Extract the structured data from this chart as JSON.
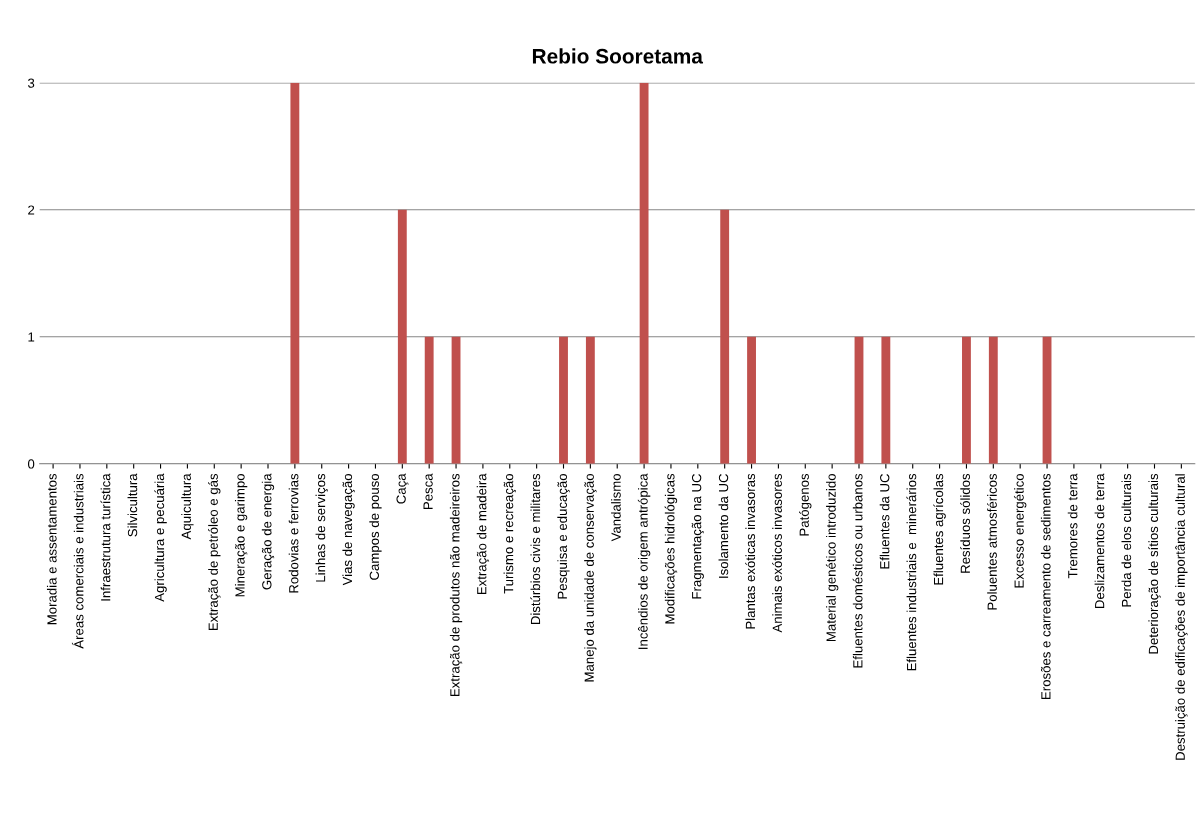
{
  "chart_data": {
    "type": "bar",
    "title": "Rebio Sooretama",
    "categories": [
      "Moradia e assentamentos",
      "Áreas comerciais e industriais",
      "Infraestrutura turística",
      "Silvicultura",
      "Agricultura e pecuária",
      "Aquicultura",
      "Extração de petróleo e gás",
      "Mineração e garimpo",
      "Geração de energia",
      "Rodovias e ferrovias",
      "Linhas de serviços",
      "Vias de navegação",
      "Campos de pouso",
      "Caça",
      "Pesca",
      "Extração de produtos não madeireiros",
      "Extração de madeira",
      "Turismo e recreação",
      "Distúrbios civis e militares",
      "Pesquisa e educação",
      "Manejo da unidade de conservação",
      "Vandalismo",
      "Incêndios de origem antrópica",
      "Modificações hidrológicas",
      "Fragmentação na UC",
      "Isolamento da UC",
      "Plantas exóticas invasoras",
      "Animais exóticos invasores",
      "Patógenos",
      "Material genético introduzido",
      "Efluentes domésticos ou urbanos",
      "Efluentes da UC",
      "Efluentes industriais e  minerários",
      "Efluentes agrícolas",
      "Resíduos sólidos",
      "Poluentes atmosféricos",
      "Excesso energético",
      "Erosões e carreamento de sedimentos",
      "Tremores de terra",
      "Deslizamentos de terra",
      "Perda de elos culturais",
      "Deterioração de sítios culturais",
      "Destruição de edificações de importância cultural"
    ],
    "values": [
      0,
      0,
      0,
      0,
      0,
      0,
      0,
      0,
      0,
      3,
      0,
      0,
      0,
      2,
      1,
      1,
      0,
      0,
      0,
      1,
      1,
      0,
      3,
      0,
      0,
      2,
      1,
      0,
      0,
      0,
      1,
      1,
      0,
      0,
      1,
      1,
      0,
      1,
      0,
      0,
      0,
      0,
      0
    ],
    "color": "#c0504d",
    "ylim": [
      0,
      3
    ],
    "yticks": [
      0,
      1,
      2,
      3
    ],
    "grid": "y"
  }
}
